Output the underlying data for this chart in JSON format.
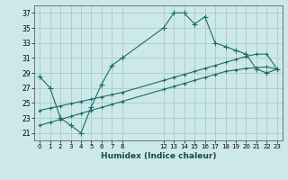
{
  "xlabel": "Humidex (Indice chaleur)",
  "bg_color": "#cde8e8",
  "grid_color": "#a8cbcb",
  "line_color": "#1a6b6b",
  "line1_x": [
    0,
    1,
    2,
    3,
    4,
    5,
    6,
    7,
    8,
    12,
    13,
    14,
    15,
    16,
    17,
    18,
    19,
    20,
    21,
    22,
    23
  ],
  "line1_y": [
    28.5,
    27,
    23,
    22,
    21,
    24.5,
    27.5,
    30,
    31,
    35,
    37,
    37,
    35.5,
    36.5,
    33,
    32.5,
    32,
    31.5,
    29.5,
    29,
    29.5
  ],
  "line2_x": [
    0,
    1,
    2,
    3,
    4,
    5,
    6,
    7,
    8,
    12,
    13,
    14,
    15,
    16,
    17,
    18,
    19,
    20,
    21,
    22,
    23
  ],
  "line2_y": [
    24.0,
    24.3,
    24.6,
    24.9,
    25.2,
    25.5,
    25.8,
    26.1,
    26.4,
    28.0,
    28.4,
    28.8,
    29.2,
    29.6,
    30.0,
    30.4,
    30.8,
    31.2,
    31.5,
    31.5,
    29.5
  ],
  "line3_x": [
    0,
    1,
    2,
    3,
    4,
    5,
    6,
    7,
    8,
    12,
    13,
    14,
    15,
    16,
    17,
    18,
    19,
    20,
    21,
    22,
    23
  ],
  "line3_y": [
    22.0,
    22.4,
    22.8,
    23.2,
    23.6,
    24.0,
    24.4,
    24.8,
    25.2,
    26.8,
    27.2,
    27.6,
    28.0,
    28.4,
    28.8,
    29.2,
    29.4,
    29.6,
    29.7,
    29.8,
    29.5
  ],
  "xlim": [
    -0.5,
    23.5
  ],
  "ylim": [
    20.0,
    38.0
  ],
  "yticks": [
    21,
    23,
    25,
    27,
    29,
    31,
    33,
    35,
    37
  ],
  "xtick_positions": [
    0,
    1,
    2,
    3,
    4,
    5,
    6,
    7,
    8,
    12,
    13,
    14,
    15,
    16,
    17,
    18,
    19,
    20,
    21,
    22,
    23
  ],
  "xtick_labels": [
    "0",
    "1",
    "2",
    "3",
    "4",
    "5",
    "6",
    "7",
    "8",
    "12",
    "13",
    "14",
    "15",
    "16",
    "17",
    "18",
    "19",
    "20",
    "21",
    "22",
    "23"
  ]
}
